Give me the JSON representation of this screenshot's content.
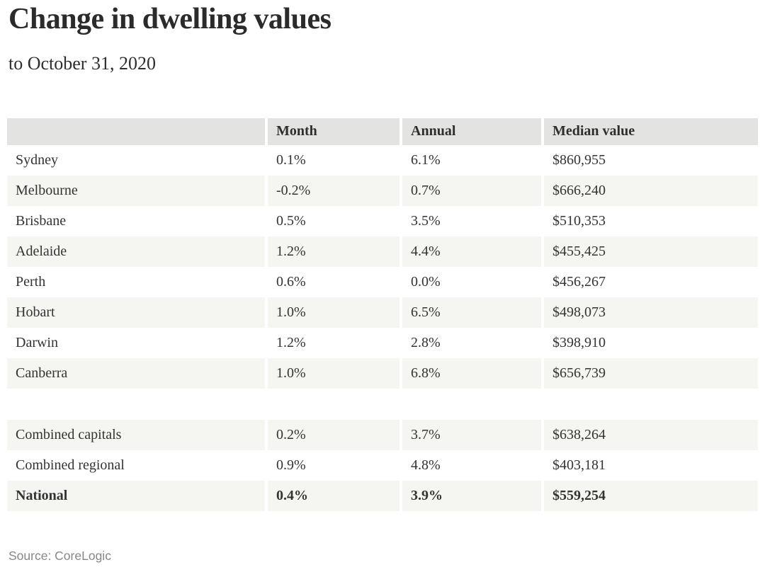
{
  "chart_data": {
    "type": "table",
    "title": "Change in dwelling values",
    "subtitle": "to October 31, 2020",
    "source_label": "Source: CoreLogic",
    "columns": [
      "",
      "Month",
      "Annual",
      "Median value"
    ],
    "rows": [
      {
        "label": "Sydney",
        "month": "0.1%",
        "annual": "6.1%",
        "median": "$860,955"
      },
      {
        "label": "Melbourne",
        "month": "-0.2%",
        "annual": "0.7%",
        "median": "$666,240"
      },
      {
        "label": "Brisbane",
        "month": "0.5%",
        "annual": "3.5%",
        "median": "$510,353"
      },
      {
        "label": "Adelaide",
        "month": "1.2%",
        "annual": "4.4%",
        "median": "$455,425"
      },
      {
        "label": "Perth",
        "month": "0.6%",
        "annual": "0.0%",
        "median": "$456,267"
      },
      {
        "label": "Hobart",
        "month": "1.0%",
        "annual": "6.5%",
        "median": "$498,073"
      },
      {
        "label": "Darwin",
        "month": "1.2%",
        "annual": "2.8%",
        "median": "$398,910"
      },
      {
        "label": "Canberra",
        "month": "1.0%",
        "annual": "6.8%",
        "median": "$656,739"
      },
      {
        "label": "Combined capitals",
        "month": "0.2%",
        "annual": "3.7%",
        "median": "$638,264"
      },
      {
        "label": "Combined regional",
        "month": "0.9%",
        "annual": "4.8%",
        "median": "$403,181"
      },
      {
        "label": "National",
        "month": "0.4%",
        "annual": "3.9%",
        "median": "$559,254"
      }
    ],
    "layout": {
      "spacer_after_row_index": 7,
      "bold_row_label": "National",
      "zebra_rows": true,
      "legend": "none",
      "grid": "off"
    }
  },
  "colors": {
    "header_bg": "#e3e3e2",
    "alt_row_bg": "#f5f5f2",
    "text": "#333333",
    "title_color": "#2b2b2b",
    "source_color": "#87878a",
    "page_bg": "#ffffff"
  }
}
